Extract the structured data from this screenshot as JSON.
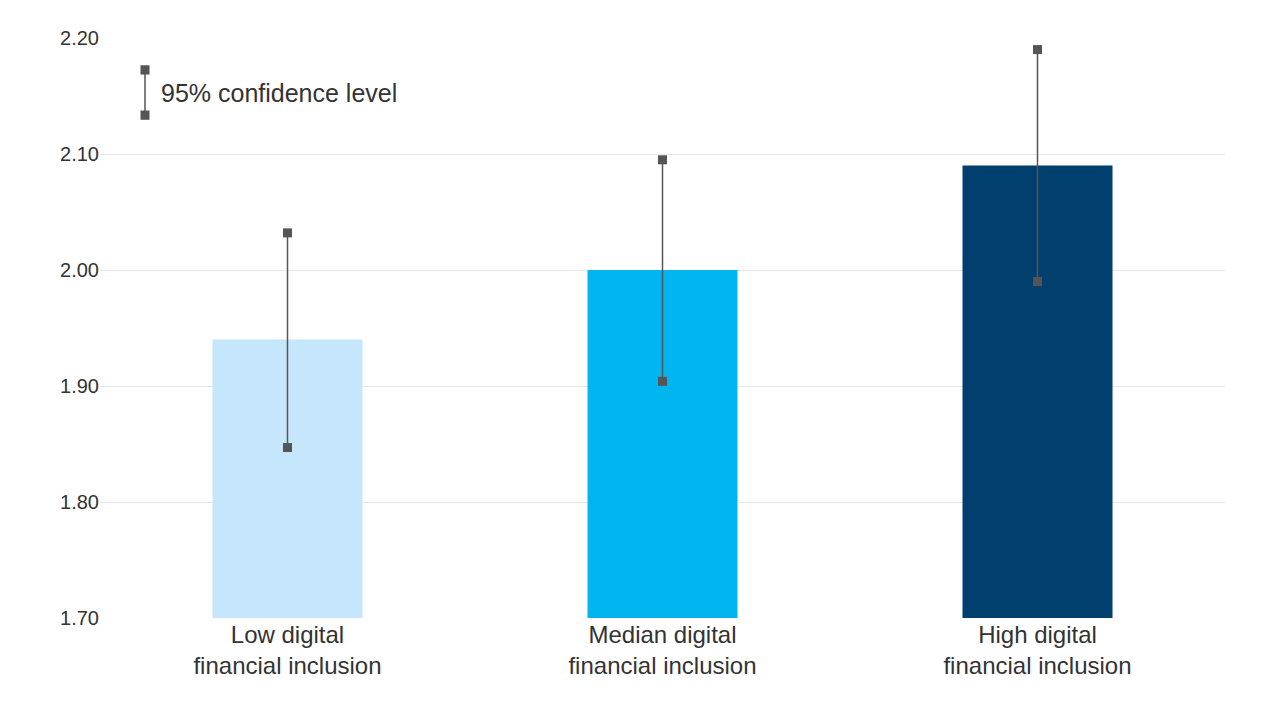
{
  "chart_data": {
    "type": "bar",
    "categories": [
      "Low digital financial inclusion",
      "Median digital financial inclusion",
      "High digital financial inclusion"
    ],
    "values": [
      1.94,
      2.0,
      2.09
    ],
    "colors": [
      "#c5e6fb",
      "#00b5f0",
      "#003f6e"
    ],
    "ci_low": [
      1.847,
      1.904,
      1.99
    ],
    "ci_high": [
      2.032,
      2.095,
      2.19
    ],
    "error_bar_label": "95% confidence level",
    "ylim": [
      1.7,
      2.2
    ],
    "yticks": [
      {
        "value": 1.7,
        "label": "1.70"
      },
      {
        "value": 1.8,
        "label": "1.80"
      },
      {
        "value": 1.9,
        "label": "1.90"
      },
      {
        "value": 2.0,
        "label": "2.00"
      },
      {
        "value": 2.1,
        "label": "2.10"
      },
      {
        "value": 2.2,
        "label": "2.20"
      }
    ],
    "grid": true
  }
}
